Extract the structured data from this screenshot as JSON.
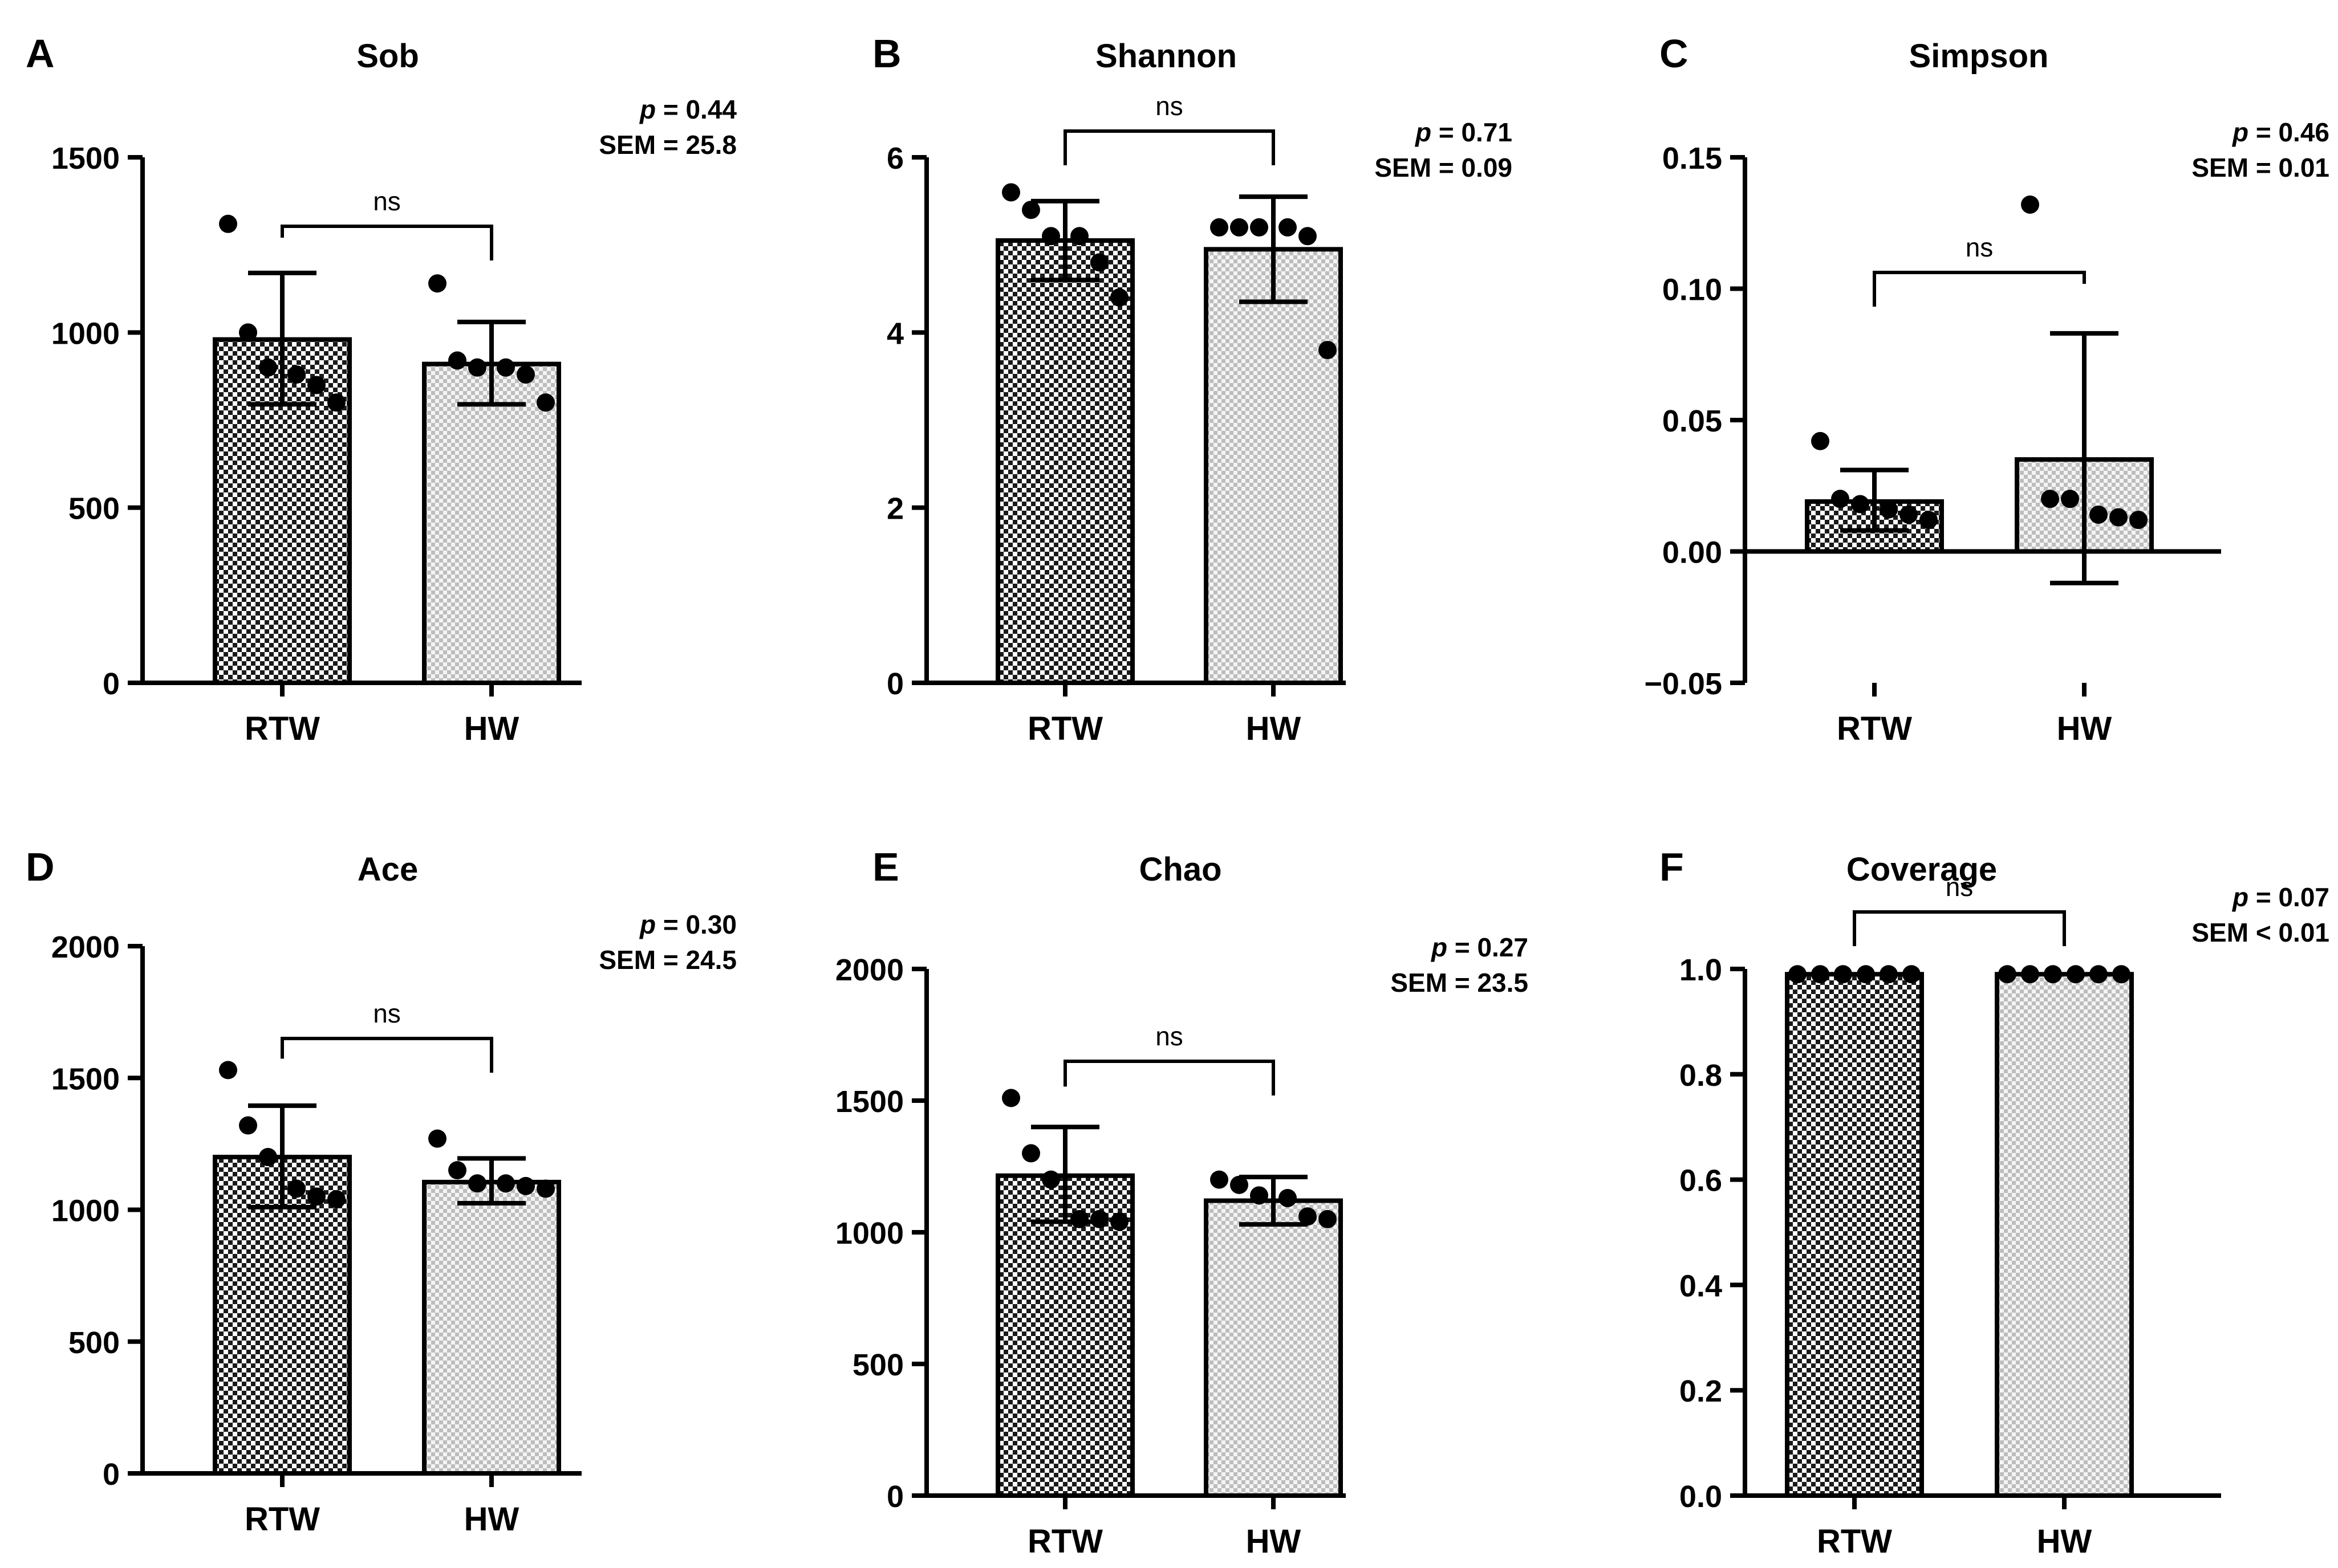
{
  "chart_data": [
    {
      "panel_label": "A",
      "type": "bar",
      "title": "Sob",
      "categories": [
        "RTW",
        "HW"
      ],
      "values": [
        980,
        910
      ],
      "error": [
        [
          795,
          1170
        ],
        [
          795,
          1030
        ]
      ],
      "points": [
        [
          1310,
          1000,
          900,
          880,
          850,
          800
        ],
        [
          1140,
          920,
          900,
          900,
          880,
          800
        ]
      ],
      "ylim": [
        0,
        1500
      ],
      "yticks": [
        0,
        500,
        1000,
        1500
      ],
      "ytick_labels": [
        "0",
        "500",
        "1000",
        "1500"
      ],
      "significance": "ns",
      "stats": {
        "p_label": "p",
        "p_value": " = 0.44",
        "sem": "SEM = 25.8"
      }
    },
    {
      "panel_label": "B",
      "type": "bar",
      "title": "Shannon",
      "categories": [
        "RTW",
        "HW"
      ],
      "values": [
        5.05,
        4.95
      ],
      "error": [
        [
          4.6,
          5.5
        ],
        [
          4.35,
          5.55
        ]
      ],
      "points": [
        [
          5.6,
          5.4,
          5.1,
          5.1,
          4.8,
          4.4
        ],
        [
          5.2,
          5.2,
          5.2,
          5.2,
          5.1,
          3.8
        ]
      ],
      "ylim": [
        0,
        6
      ],
      "yticks": [
        0,
        2,
        4,
        6
      ],
      "ytick_labels": [
        "0",
        "2",
        "4",
        "6"
      ],
      "significance": "ns",
      "stats": {
        "p_label": "p",
        "p_value": " = 0.71",
        "sem": "SEM = 0.09"
      }
    },
    {
      "panel_label": "C",
      "type": "bar",
      "title": "Simpson",
      "categories": [
        "RTW",
        "HW"
      ],
      "values": [
        0.019,
        0.035
      ],
      "error": [
        [
          0.008,
          0.031
        ],
        [
          -0.012,
          0.083
        ]
      ],
      "points": [
        [
          0.042,
          0.02,
          0.018,
          0.016,
          0.014,
          0.012
        ],
        [
          0.132,
          0.02,
          0.02,
          0.014,
          0.013,
          0.012
        ]
      ],
      "ylim": [
        -0.05,
        0.15
      ],
      "yticks": [
        -0.05,
        0.0,
        0.05,
        0.1,
        0.15
      ],
      "ytick_labels": [
        "−0.05",
        "0.00",
        "0.05",
        "0.10",
        "0.15"
      ],
      "significance": "ns",
      "stats": {
        "p_label": "p",
        "p_value": " = 0.46",
        "sem": "SEM = 0.01"
      }
    },
    {
      "panel_label": "D",
      "type": "bar",
      "title": "Ace",
      "categories": [
        "RTW",
        "HW"
      ],
      "values": [
        1200,
        1105
      ],
      "error": [
        [
          1010,
          1395
        ],
        [
          1025,
          1195
        ]
      ],
      "points": [
        [
          1530,
          1320,
          1200,
          1080,
          1050,
          1040
        ],
        [
          1270,
          1150,
          1100,
          1100,
          1090,
          1080
        ]
      ],
      "ylim": [
        0,
        2000
      ],
      "yticks": [
        0,
        500,
        1000,
        1500,
        2000
      ],
      "ytick_labels": [
        "0",
        "500",
        "1000",
        "1500",
        "2000"
      ],
      "significance": "ns",
      "stats": {
        "p_label": "p",
        "p_value": " = 0.30",
        "sem": "SEM = 24.5"
      }
    },
    {
      "panel_label": "E",
      "type": "bar",
      "title": "Chao",
      "categories": [
        "RTW",
        "HW"
      ],
      "values": [
        1215,
        1120
      ],
      "error": [
        [
          1040,
          1400
        ],
        [
          1030,
          1210
        ]
      ],
      "points": [
        [
          1510,
          1300,
          1200,
          1050,
          1050,
          1040
        ],
        [
          1200,
          1180,
          1140,
          1130,
          1060,
          1050
        ]
      ],
      "ylim": [
        0,
        2000
      ],
      "yticks": [
        0,
        500,
        1000,
        1500,
        2000
      ],
      "ytick_labels": [
        "0",
        "500",
        "1000",
        "1500",
        "2000"
      ],
      "significance": "ns",
      "stats": {
        "p_label": "p",
        "p_value": " = 0.27",
        "sem": "SEM = 23.5"
      }
    },
    {
      "panel_label": "F",
      "type": "bar",
      "title": "Coverage",
      "categories": [
        "RTW",
        "HW"
      ],
      "values": [
        0.99,
        0.99
      ],
      "error": [
        [
          0.99,
          0.99
        ],
        [
          0.99,
          0.99
        ]
      ],
      "points": [
        [
          0.99,
          0.99,
          0.99,
          0.99,
          0.99,
          0.99
        ],
        [
          0.99,
          0.99,
          0.99,
          0.99,
          0.99,
          0.99
        ]
      ],
      "ylim": [
        0,
        1.0
      ],
      "yticks": [
        0,
        0.2,
        0.4,
        0.6,
        0.8,
        1.0
      ],
      "ytick_labels": [
        "0.0",
        "0.2",
        "0.4",
        "0.6",
        "0.8",
        "1.0"
      ],
      "significance": "ns",
      "stats": {
        "p_label": "p",
        "p_value": " = 0.07",
        "sem": "SEM < 0.01"
      }
    }
  ]
}
